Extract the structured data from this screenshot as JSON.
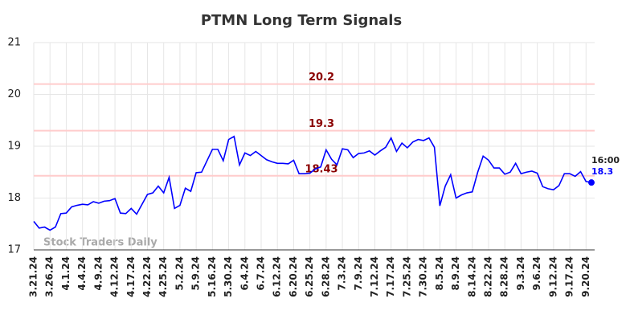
{
  "chart_data": {
    "type": "line",
    "title": "PTMN Long Term Signals",
    "watermark": "Stock Traders Daily",
    "categories": [
      "3.21.24",
      null,
      null,
      "3.26.24",
      null,
      null,
      "4.1.24",
      null,
      null,
      "4.4.24",
      null,
      null,
      "4.9.24",
      null,
      null,
      "4.12.24",
      null,
      null,
      "4.17.24",
      null,
      null,
      "4.22.24",
      null,
      null,
      "4.25.24",
      null,
      null,
      "5.2.24",
      null,
      null,
      "5.9.24",
      null,
      null,
      "5.16.24",
      null,
      null,
      "5.30.24",
      null,
      null,
      "6.4.24",
      null,
      null,
      "6.7.24",
      null,
      null,
      "6.12.24",
      null,
      null,
      "6.20.24",
      null,
      null,
      "6.25.24",
      null,
      null,
      "6.28.24",
      null,
      null,
      "7.3.24",
      null,
      null,
      "7.9.24",
      null,
      null,
      "7.12.24",
      null,
      null,
      "7.17.24",
      null,
      null,
      "7.25.24",
      null,
      null,
      "7.30.24",
      null,
      null,
      "8.5.24",
      null,
      null,
      "8.9.24",
      null,
      null,
      "8.14.24",
      null,
      null,
      "8.22.24",
      null,
      null,
      "8.28.24",
      null,
      null,
      "9.3.24",
      null,
      null,
      "9.6.24",
      null,
      null,
      "9.12.24",
      null,
      null,
      "9.17.24",
      null,
      null,
      "9.20.24",
      null
    ],
    "series": [
      {
        "name": "PTMN",
        "color": "#0000ff",
        "values": [
          17.55,
          17.42,
          17.44,
          17.38,
          17.44,
          17.7,
          17.71,
          17.83,
          17.86,
          17.88,
          17.87,
          17.93,
          17.9,
          17.94,
          17.95,
          17.99,
          17.71,
          17.7,
          17.8,
          17.69,
          17.88,
          18.07,
          18.1,
          18.23,
          18.1,
          18.4,
          17.8,
          17.86,
          18.19,
          18.13,
          18.49,
          18.5,
          18.72,
          18.94,
          18.94,
          18.72,
          19.13,
          19.19,
          18.64,
          18.87,
          18.82,
          18.9,
          18.82,
          18.74,
          18.7,
          18.67,
          18.67,
          18.66,
          18.73,
          18.47,
          18.47,
          18.48,
          18.56,
          18.6,
          18.93,
          18.75,
          18.64,
          18.95,
          18.93,
          18.78,
          18.86,
          18.87,
          18.91,
          18.83,
          18.91,
          18.98,
          19.16,
          18.9,
          19.06,
          18.97,
          19.08,
          19.13,
          19.11,
          19.16,
          18.98,
          17.85,
          18.23,
          18.45,
          18.0,
          18.06,
          18.1,
          18.12,
          18.5,
          18.81,
          18.73,
          18.58,
          18.58,
          18.46,
          18.5,
          18.67,
          18.47,
          18.5,
          18.52,
          18.48,
          18.22,
          18.18,
          18.16,
          18.24,
          18.47,
          18.47,
          18.42,
          18.51,
          18.32,
          18.3
        ]
      }
    ],
    "levels": [
      20.2,
      19.3,
      18.43
    ],
    "level_color": "#ffcccc",
    "level_label_color": "#8b0000",
    "last_time": "16:00",
    "ylim": [
      17,
      21
    ],
    "yticks": [
      17,
      18,
      19,
      20,
      21
    ],
    "grid": true
  }
}
